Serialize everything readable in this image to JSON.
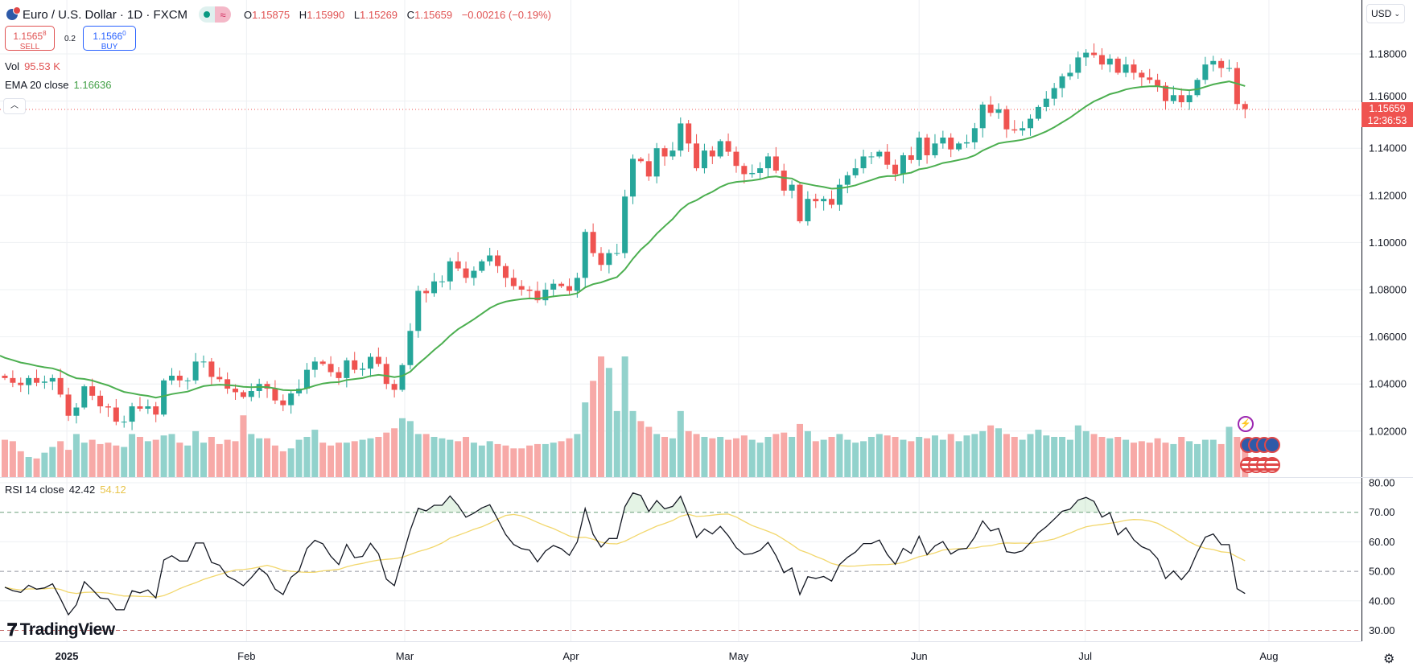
{
  "header": {
    "symbol": "Euro / U.S. Dollar · 1D · FXCM",
    "market_status": "open",
    "o_label": "O",
    "o": "1.15875",
    "h_label": "H",
    "h": "1.15990",
    "l_label": "L",
    "l": "1.15269",
    "c_label": "C",
    "c": "1.15659",
    "change": "−0.00216 (−0.19%)"
  },
  "trade": {
    "sell_price": "1.1565",
    "sell_pip": "8",
    "sell_label": "SELL",
    "spread": "0.2",
    "buy_price": "1.1566",
    "buy_pip": "0",
    "buy_label": "BUY"
  },
  "indicators": {
    "vol_label": "Vol",
    "vol_value": "95.53 K",
    "ema_label": "EMA 20 close",
    "ema_value": "1.16636",
    "rsi_label": "RSI 14 close",
    "rsi_value": "42.42",
    "rsi_ma_value": "54.12"
  },
  "axis": {
    "currency": "USD",
    "current_price": "1.15659",
    "countdown": "12:36:53"
  },
  "branding": {
    "logo_text": "TradingView"
  },
  "colors": {
    "up": "#26a69a",
    "down": "#ef5350",
    "vol_up": "#92d2cc",
    "vol_down": "#f7a9a7",
    "ema": "#4caf50",
    "rsi": "#131722",
    "rsi_ma": "#f2d76c"
  },
  "chart_data": {
    "type": "candlestick",
    "title": "Euro / U.S. Dollar · 1D · FXCM",
    "first_open": 1.0435,
    "closes": [
      1.0425,
      1.0405,
      1.0395,
      1.0425,
      1.0405,
      1.041,
      1.0425,
      1.0355,
      1.0265,
      1.03,
      1.039,
      1.035,
      1.0305,
      1.03,
      1.024,
      1.024,
      1.0305,
      1.0295,
      1.0305,
      1.027,
      1.0415,
      1.0435,
      1.0415,
      1.0415,
      1.0495,
      1.0495,
      1.043,
      1.042,
      1.038,
      1.0365,
      1.0345,
      1.037,
      1.04,
      1.038,
      1.033,
      1.031,
      1.036,
      1.038,
      1.046,
      1.0495,
      1.0485,
      1.045,
      1.0425,
      1.05,
      1.046,
      1.0465,
      1.0515,
      1.0485,
      1.04,
      1.0375,
      1.048,
      1.0625,
      1.0795,
      1.0785,
      1.0835,
      1.0835,
      1.092,
      1.089,
      1.085,
      1.088,
      1.092,
      1.0945,
      1.09,
      1.085,
      1.0815,
      1.08,
      1.0795,
      1.0755,
      1.08,
      1.0825,
      1.0815,
      1.0795,
      1.085,
      1.1045,
      1.0955,
      1.0905,
      1.0955,
      1.0955,
      1.1195,
      1.1355,
      1.1345,
      1.128,
      1.14,
      1.1365,
      1.139,
      1.1505,
      1.142,
      1.1315,
      1.139,
      1.1365,
      1.143,
      1.1385,
      1.1325,
      1.129,
      1.1295,
      1.1315,
      1.1365,
      1.1305,
      1.122,
      1.1245,
      1.109,
      1.1185,
      1.1175,
      1.1185,
      1.116,
      1.1245,
      1.1285,
      1.1315,
      1.1365,
      1.1365,
      1.1385,
      1.133,
      1.129,
      1.137,
      1.135,
      1.1445,
      1.137,
      1.142,
      1.1445,
      1.1395,
      1.142,
      1.1425,
      1.1485,
      1.1585,
      1.155,
      1.1565,
      1.148,
      1.1475,
      1.1485,
      1.1525,
      1.1575,
      1.161,
      1.1655,
      1.1705,
      1.172,
      1.1785,
      1.1805,
      1.1795,
      1.1755,
      1.178,
      1.172,
      1.1755,
      1.172,
      1.17,
      1.169,
      1.1665,
      1.16,
      1.1625,
      1.1595,
      1.1625,
      1.169,
      1.1755,
      1.177,
      1.174,
      1.174,
      1.15875,
      1.15659
    ],
    "last_bar": {
      "open": 1.15875,
      "high": 1.1599,
      "low": 1.15269,
      "close": 1.15659
    },
    "volume_k": [
      130,
      125,
      90,
      70,
      65,
      85,
      105,
      125,
      95,
      150,
      120,
      130,
      115,
      120,
      110,
      105,
      150,
      140,
      125,
      130,
      145,
      150,
      120,
      110,
      160,
      120,
      140,
      115,
      130,
      125,
      215,
      150,
      135,
      135,
      110,
      90,
      100,
      130,
      140,
      165,
      120,
      110,
      120,
      120,
      125,
      130,
      135,
      140,
      155,
      170,
      205,
      195,
      150,
      150,
      140,
      135,
      130,
      125,
      140,
      120,
      110,
      125,
      115,
      110,
      100,
      100,
      110,
      115,
      115,
      120,
      125,
      135,
      150,
      260,
      335,
      420,
      380,
      230,
      420,
      230,
      195,
      175,
      150,
      140,
      135,
      230,
      160,
      150,
      140,
      135,
      140,
      130,
      135,
      145,
      130,
      120,
      140,
      150,
      155,
      140,
      185,
      160,
      125,
      130,
      140,
      150,
      130,
      120,
      125,
      140,
      150,
      145,
      140,
      130,
      125,
      140,
      135,
      145,
      130,
      150,
      125,
      145,
      150,
      160,
      180,
      170,
      150,
      140,
      130,
      150,
      165,
      145,
      140,
      140,
      130,
      180,
      160,
      150,
      140,
      135,
      140,
      130,
      120,
      125,
      120,
      135,
      120,
      115,
      140,
      125,
      115,
      130,
      130,
      115,
      175,
      140,
      95.53
    ],
    "ema_period": 20,
    "ema_initial": 1.052,
    "rsi_period": 14,
    "rsi_ma_period": 14,
    "ylim": [
      1.003,
      1.19
    ],
    "yticks": [
      "1.18000",
      "1.16000",
      "1.14000",
      "1.12000",
      "1.10000",
      "1.08000",
      "1.06000",
      "1.04000",
      "1.02000"
    ],
    "rsi_ylim": [
      28,
      82
    ],
    "rsi_ticks": [
      "80.00",
      "70.00",
      "60.00",
      "50.00",
      "40.00",
      "30.00"
    ],
    "rsi_levels": {
      "overbought": 70,
      "middle": 50,
      "oversold": 30
    },
    "xticks": [
      {
        "label": "2025",
        "bar": 7.8,
        "bold": true
      },
      {
        "label": "Feb",
        "bar": 30.4
      },
      {
        "label": "Mar",
        "bar": 50.3
      },
      {
        "label": "Apr",
        "bar": 71.2
      },
      {
        "label": "May",
        "bar": 92.3
      },
      {
        "label": "Jun",
        "bar": 115
      },
      {
        "label": "Jul",
        "bar": 135.9
      },
      {
        "label": "Aug",
        "bar": 159
      }
    ]
  }
}
